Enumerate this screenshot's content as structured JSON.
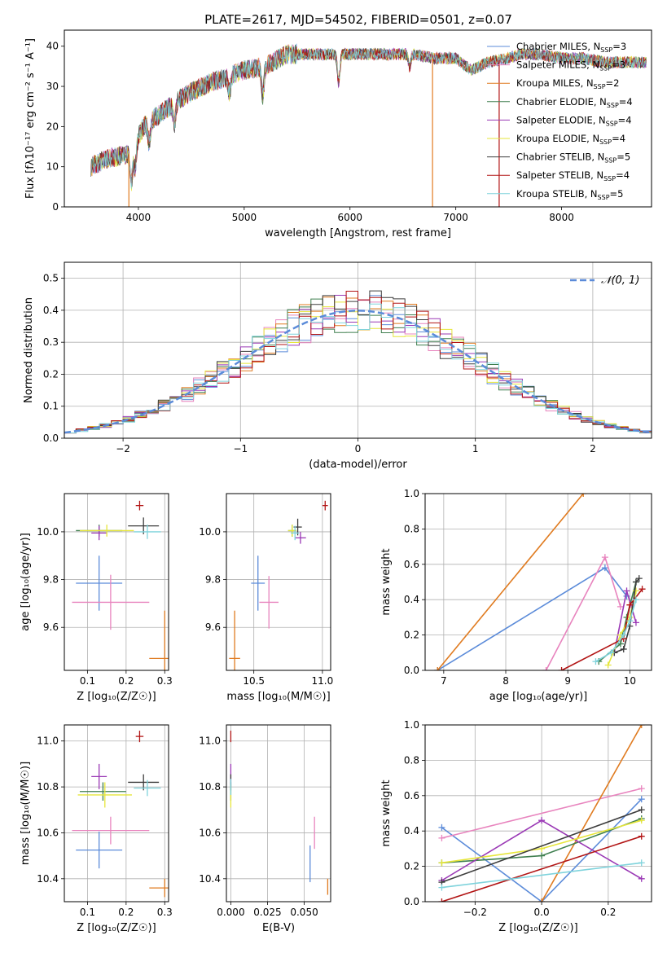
{
  "figure_title": "PLATE=2617, MJD=54502, FIBERID=0501, z=0.07",
  "colors": {
    "chabrier_miles": "#5b8bd9",
    "salpeter_miles": "#e884be",
    "kroupa_miles": "#e07b20",
    "chabrier_elodie": "#3f7f4f",
    "salpeter_elodie": "#9a38b5",
    "kroupa_elodie": "#e6e63a",
    "chabrier_stelib": "#3d3d3d",
    "salpeter_stelib": "#b21414",
    "kroupa_stelib": "#7fd3dc",
    "gauss": "#5b8bd9"
  },
  "chart_data": [
    {
      "id": "spectrum",
      "type": "line",
      "xlabel": "wavelength [Angstrom, rest frame]",
      "ylabel": "Flux [fλ10⁻¹⁷ erg cm⁻² s⁻¹ A⁻¹]",
      "xlim": [
        3300,
        8850
      ],
      "ylim": [
        0,
        44
      ],
      "xticks": [
        4000,
        5000,
        6000,
        7000,
        8000
      ],
      "yticks": [
        0,
        10,
        20,
        30,
        40
      ],
      "legend_position": "top-right",
      "legend": [
        {
          "label": "Chabrier MILES, N",
          "sub": "SSP",
          "tail": "=3",
          "color_key": "chabrier_miles"
        },
        {
          "label": "Salpeter MILES, N",
          "sub": "SSP",
          "tail": "=3",
          "color_key": "salpeter_miles"
        },
        {
          "label": "Kroupa MILES, N",
          "sub": "SSP",
          "tail": "=2",
          "color_key": "kroupa_miles"
        },
        {
          "label": "Chabrier ELODIE, N",
          "sub": "SSP",
          "tail": "=4",
          "color_key": "chabrier_elodie"
        },
        {
          "label": "Salpeter ELODIE, N",
          "sub": "SSP",
          "tail": "=4",
          "color_key": "salpeter_elodie"
        },
        {
          "label": "Kroupa ELODIE, N",
          "sub": "SSP",
          "tail": "=4",
          "color_key": "kroupa_elodie"
        },
        {
          "label": "Chabrier STELIB, N",
          "sub": "SSP",
          "tail": "=5",
          "color_key": "chabrier_stelib"
        },
        {
          "label": "Salpeter STELIB, N",
          "sub": "SSP",
          "tail": "=4",
          "color_key": "salpeter_stelib"
        },
        {
          "label": "Kroupa STELIB, N",
          "sub": "SSP",
          "tail": "=5",
          "color_key": "kroupa_stelib"
        }
      ],
      "continuum": {
        "x": [
          3550,
          3700,
          3900,
          3950,
          4050,
          4200,
          4400,
          4600,
          4800,
          5000,
          5200,
          5400,
          5600,
          5800,
          6000,
          6200,
          6400,
          6600,
          6800,
          7000,
          7150,
          7300,
          7500,
          7600,
          7800,
          8000,
          8200,
          8400,
          8600,
          8800
        ],
        "y": [
          10,
          12,
          13,
          15,
          20,
          23,
          27,
          30,
          32,
          34,
          35,
          38,
          38,
          38,
          38,
          38,
          38,
          38,
          37,
          37,
          34,
          36,
          37,
          38,
          38,
          37,
          37,
          36,
          36,
          36
        ]
      },
      "absorption_lines": [
        {
          "x": 3934,
          "depth": 8
        },
        {
          "x": 3969,
          "depth": 6
        },
        {
          "x": 4102,
          "depth": 5
        },
        {
          "x": 4340,
          "depth": 5
        },
        {
          "x": 4861,
          "depth": 4
        },
        {
          "x": 5175,
          "depth": 7
        },
        {
          "x": 5893,
          "depth": 7
        },
        {
          "x": 6563,
          "depth": 3
        }
      ],
      "dropouts": [
        {
          "x": 3910,
          "color_key": "kroupa_miles"
        },
        {
          "x": 6780,
          "color_key": "kroupa_miles"
        },
        {
          "x": 7410,
          "color_key": "salpeter_stelib"
        }
      ]
    },
    {
      "id": "residuals",
      "type": "histogram",
      "xlabel": "(data-model)/error",
      "ylabel": "Normed distribution",
      "xlim": [
        -2.5,
        2.5
      ],
      "ylim": [
        0,
        0.55
      ],
      "xticks": [
        -2,
        -1,
        0,
        1,
        2
      ],
      "yticks": [
        0.0,
        0.1,
        0.2,
        0.3,
        0.4,
        0.5
      ],
      "bin_width": 0.1,
      "legend_position": "top-right",
      "gauss_label": "𝒩(0, 1)"
    },
    {
      "id": "age_vs_Z",
      "type": "errorbar",
      "xlabel": "Z [log₁₀(Z/Z☉)]",
      "ylabel": "age  [log₁₀(age/yr)]",
      "xlim": [
        0.04,
        0.31
      ],
      "ylim": [
        9.42,
        10.16
      ],
      "xticks": [
        0.1,
        0.2,
        0.3
      ],
      "yticks": [
        9.6,
        9.8,
        10.0
      ],
      "points": [
        {
          "color_key": "chabrier_miles",
          "x": 0.13,
          "xerr": 0.06,
          "y": 9.785,
          "yerr": 0.115
        },
        {
          "color_key": "salpeter_miles",
          "x": 0.16,
          "xerr": 0.1,
          "y": 9.705,
          "yerr": 0.115
        },
        {
          "color_key": "kroupa_miles",
          "x": 0.3,
          "xerr": 0.04,
          "y": 9.47,
          "yerr": 0.2
        },
        {
          "color_key": "chabrier_elodie",
          "x": 0.13,
          "xerr": 0.06,
          "y": 10.005,
          "yerr": 0.025
        },
        {
          "color_key": "salpeter_elodie",
          "x": 0.13,
          "xerr": 0.02,
          "y": 9.995,
          "yerr": 0.03
        },
        {
          "color_key": "kroupa_elodie",
          "x": 0.15,
          "xerr": 0.07,
          "y": 10.005,
          "yerr": 0.025
        },
        {
          "color_key": "chabrier_stelib",
          "x": 0.245,
          "xerr": 0.04,
          "y": 10.025,
          "yerr": 0.035
        },
        {
          "color_key": "salpeter_stelib",
          "x": 0.235,
          "xerr": 0.01,
          "y": 10.11,
          "yerr": 0.02
        },
        {
          "color_key": "kroupa_stelib",
          "x": 0.255,
          "xerr": 0.035,
          "y": 10.0,
          "yerr": 0.03
        }
      ]
    },
    {
      "id": "age_vs_mass",
      "type": "errorbar",
      "xlabel": "mass [log₁₀(M/M☉)]",
      "ylabel": "",
      "xlim": [
        10.3,
        11.06
      ],
      "ylim": [
        9.42,
        10.16
      ],
      "xticks": [
        10.5,
        11.0
      ],
      "yticks": [
        9.6,
        9.8,
        10.0
      ],
      "points": [
        {
          "color_key": "chabrier_miles",
          "x": 10.53,
          "xerr": 0.05,
          "y": 9.785,
          "yerr": 0.115
        },
        {
          "color_key": "salpeter_miles",
          "x": 10.61,
          "xerr": 0.07,
          "y": 9.705,
          "yerr": 0.11
        },
        {
          "color_key": "kroupa_miles",
          "x": 10.36,
          "xerr": 0.04,
          "y": 9.47,
          "yerr": 0.2
        },
        {
          "color_key": "chabrier_elodie",
          "x": 10.78,
          "xerr": 0.03,
          "y": 10.005,
          "yerr": 0.025
        },
        {
          "color_key": "salpeter_elodie",
          "x": 10.84,
          "xerr": 0.04,
          "y": 9.975,
          "yerr": 0.025
        },
        {
          "color_key": "kroupa_elodie",
          "x": 10.78,
          "xerr": 0.03,
          "y": 10.005,
          "yerr": 0.025
        },
        {
          "color_key": "chabrier_stelib",
          "x": 10.82,
          "xerr": 0.03,
          "y": 10.02,
          "yerr": 0.035
        },
        {
          "color_key": "salpeter_stelib",
          "x": 11.02,
          "xerr": 0.02,
          "y": 10.11,
          "yerr": 0.02
        },
        {
          "color_key": "kroupa_stelib",
          "x": 10.8,
          "xerr": 0.03,
          "y": 9.995,
          "yerr": 0.03
        }
      ]
    },
    {
      "id": "mass_weight_vs_age",
      "type": "line",
      "xlabel": "age  [log₁₀(age/yr)]",
      "ylabel": "mass weight",
      "xlim": [
        6.7,
        10.35
      ],
      "ylim": [
        0,
        1
      ],
      "xticks": [
        7,
        8,
        9,
        10
      ],
      "yticks": [
        0.0,
        0.2,
        0.4,
        0.6,
        0.8,
        1.0
      ],
      "series": [
        {
          "color_key": "chabrier_miles",
          "x": [
            6.9,
            9.6,
            9.95
          ],
          "y": [
            0.0,
            0.58,
            0.42
          ]
        },
        {
          "color_key": "salpeter_miles",
          "x": [
            8.65,
            9.6,
            9.85
          ],
          "y": [
            0.0,
            0.64,
            0.36
          ]
        },
        {
          "color_key": "kroupa_miles",
          "x": [
            6.9,
            9.25
          ],
          "y": [
            0.0,
            1.0
          ]
        },
        {
          "color_key": "chabrier_elodie",
          "x": [
            9.5,
            9.85,
            9.95,
            10.1
          ],
          "y": [
            0.05,
            0.15,
            0.3,
            0.5
          ]
        },
        {
          "color_key": "salpeter_elodie",
          "x": [
            9.75,
            9.95,
            10.1
          ],
          "y": [
            0.1,
            0.45,
            0.27
          ]
        },
        {
          "color_key": "kroupa_elodie",
          "x": [
            9.65,
            9.85,
            10.0,
            10.1
          ],
          "y": [
            0.03,
            0.2,
            0.3,
            0.45
          ]
        },
        {
          "color_key": "chabrier_stelib",
          "x": [
            9.75,
            9.9,
            10.0,
            10.1,
            10.15
          ],
          "y": [
            0.1,
            0.12,
            0.25,
            0.5,
            0.52
          ]
        },
        {
          "color_key": "salpeter_stelib",
          "x": [
            8.9,
            9.9,
            10.0,
            10.2
          ],
          "y": [
            0.0,
            0.18,
            0.37,
            0.46
          ]
        },
        {
          "color_key": "kroupa_stelib",
          "x": [
            9.45,
            9.7,
            9.9,
            10.0,
            10.1
          ],
          "y": [
            0.05,
            0.1,
            0.2,
            0.28,
            0.4
          ]
        }
      ]
    },
    {
      "id": "mass_vs_Z",
      "type": "errorbar",
      "xlabel": "Z [log₁₀(Z/Z☉)]",
      "ylabel": "mass [log₁₀(M/M☉)]",
      "xlim": [
        0.04,
        0.31
      ],
      "ylim": [
        10.3,
        11.07
      ],
      "xticks": [
        0.1,
        0.2,
        0.3
      ],
      "yticks": [
        10.4,
        10.6,
        10.8,
        11.0
      ],
      "points": [
        {
          "color_key": "chabrier_miles",
          "x": 0.13,
          "xerr": 0.06,
          "y": 10.525,
          "yerr": 0.08
        },
        {
          "color_key": "salpeter_miles",
          "x": 0.16,
          "xerr": 0.1,
          "y": 10.61,
          "yerr": 0.06
        },
        {
          "color_key": "kroupa_miles",
          "x": 0.3,
          "xerr": 0.04,
          "y": 10.36,
          "yerr": 0.04
        },
        {
          "color_key": "chabrier_elodie",
          "x": 0.14,
          "xerr": 0.06,
          "y": 10.78,
          "yerr": 0.04
        },
        {
          "color_key": "salpeter_elodie",
          "x": 0.13,
          "xerr": 0.02,
          "y": 10.845,
          "yerr": 0.055
        },
        {
          "color_key": "kroupa_elodie",
          "x": 0.145,
          "xerr": 0.07,
          "y": 10.765,
          "yerr": 0.055
        },
        {
          "color_key": "chabrier_stelib",
          "x": 0.245,
          "xerr": 0.04,
          "y": 10.82,
          "yerr": 0.035
        },
        {
          "color_key": "salpeter_stelib",
          "x": 0.235,
          "xerr": 0.01,
          "y": 11.02,
          "yerr": 0.025
        },
        {
          "color_key": "kroupa_stelib",
          "x": 0.255,
          "xerr": 0.035,
          "y": 10.795,
          "yerr": 0.035
        }
      ]
    },
    {
      "id": "mass_vs_ebv",
      "type": "errorbar",
      "xlabel": "E(B-V)",
      "ylabel": "",
      "xlim": [
        -0.003,
        0.068
      ],
      "ylim": [
        10.3,
        11.07
      ],
      "xticks": [
        0.0,
        0.025,
        0.05
      ],
      "yticks": [
        10.4,
        10.6,
        10.8,
        11.0
      ],
      "points": [
        {
          "color_key": "chabrier_miles",
          "x": 0.054,
          "xerr": 0.0,
          "y": 10.465,
          "yerr": 0.08
        },
        {
          "color_key": "salpeter_miles",
          "x": 0.057,
          "xerr": 0.0,
          "y": 10.6,
          "yerr": 0.07
        },
        {
          "color_key": "kroupa_miles",
          "x": 0.066,
          "xerr": 0.0,
          "y": 10.365,
          "yerr": 0.035
        },
        {
          "color_key": "chabrier_elodie",
          "x": 0.0,
          "xerr": 0.0,
          "y": 10.78,
          "yerr": 0.04
        },
        {
          "color_key": "salpeter_elodie",
          "x": 0.0,
          "xerr": 0.0,
          "y": 10.85,
          "yerr": 0.05
        },
        {
          "color_key": "kroupa_elodie",
          "x": 0.0,
          "xerr": 0.0,
          "y": 10.76,
          "yerr": 0.05
        },
        {
          "color_key": "chabrier_stelib",
          "x": 0.0,
          "xerr": 0.0,
          "y": 10.82,
          "yerr": 0.035
        },
        {
          "color_key": "salpeter_stelib",
          "x": 0.0,
          "xerr": 0.0,
          "y": 11.02,
          "yerr": 0.025
        },
        {
          "color_key": "kroupa_stelib",
          "x": 0.0,
          "xerr": 0.0,
          "y": 10.8,
          "yerr": 0.035
        }
      ]
    },
    {
      "id": "mass_weight_vs_Z",
      "type": "line",
      "xlabel": "Z [log₁₀(Z/Z☉)]",
      "ylabel": "mass weight",
      "xlim": [
        -0.35,
        0.33
      ],
      "ylim": [
        0,
        1
      ],
      "xticks": [
        -0.2,
        0.0,
        0.2
      ],
      "yticks": [
        0.0,
        0.2,
        0.4,
        0.6,
        0.8,
        1.0
      ],
      "series": [
        {
          "color_key": "chabrier_miles",
          "x": [
            -0.3,
            0.0,
            0.3
          ],
          "y": [
            0.42,
            0.0,
            0.58
          ]
        },
        {
          "color_key": "salpeter_miles",
          "x": [
            -0.3,
            0.3
          ],
          "y": [
            0.36,
            0.64
          ]
        },
        {
          "color_key": "kroupa_miles",
          "x": [
            0.0,
            0.3
          ],
          "y": [
            0.0,
            1.0
          ]
        },
        {
          "color_key": "chabrier_elodie",
          "x": [
            -0.3,
            0.0,
            0.3
          ],
          "y": [
            0.22,
            0.26,
            0.47
          ]
        },
        {
          "color_key": "salpeter_elodie",
          "x": [
            -0.3,
            0.0,
            0.3
          ],
          "y": [
            0.12,
            0.46,
            0.13
          ]
        },
        {
          "color_key": "kroupa_elodie",
          "x": [
            -0.3,
            0.0,
            0.3
          ],
          "y": [
            0.22,
            0.3,
            0.46
          ]
        },
        {
          "color_key": "chabrier_stelib",
          "x": [
            -0.3,
            0.3
          ],
          "y": [
            0.11,
            0.52
          ]
        },
        {
          "color_key": "salpeter_stelib",
          "x": [
            -0.3,
            0.3
          ],
          "y": [
            0.0,
            0.37
          ]
        },
        {
          "color_key": "kroupa_stelib",
          "x": [
            -0.3,
            0.3
          ],
          "y": [
            0.08,
            0.22
          ]
        }
      ]
    }
  ]
}
